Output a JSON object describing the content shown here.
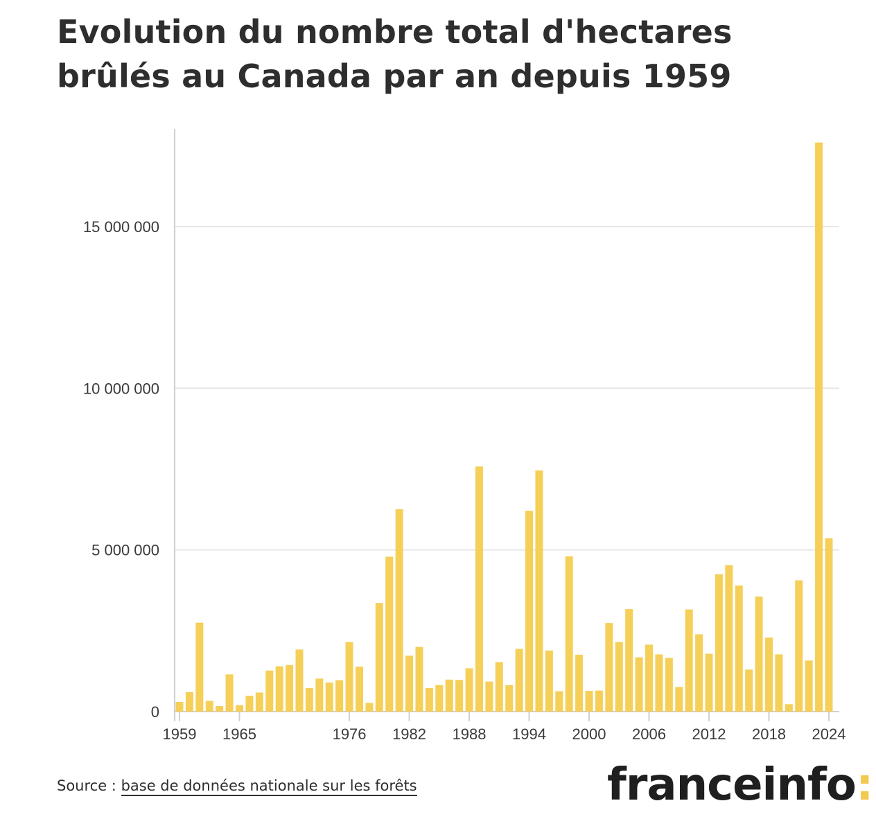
{
  "header": {
    "title": "Evolution du nombre total d'hectares brûlés au Canada par an depuis 1959"
  },
  "footer": {
    "source_prefix": "Source : ",
    "source_link": "base de données nationale sur les forêts",
    "logo_text": "franceinfo",
    "logo_colon": ":"
  },
  "colors": {
    "bar": "#f5cf57",
    "grid": "#e6e6e6",
    "axis": "#cfcfcf",
    "logo_accent": "#f3c94f"
  },
  "chart_data": {
    "type": "bar",
    "title": "",
    "xlabel": "",
    "ylabel": "",
    "ylim": [
      0,
      18000000
    ],
    "y_ticks": [
      0,
      5000000,
      10000000,
      15000000
    ],
    "y_tick_labels": [
      "0",
      "5 000 000",
      "10 000 000",
      "15 000 000"
    ],
    "x_tick_labels": [
      "1959",
      "1965",
      "1976",
      "1982",
      "1988",
      "1994",
      "2000",
      "2006",
      "2012",
      "2018",
      "2024"
    ],
    "grid": true,
    "legend": "none",
    "categories": [
      "1959",
      "1960",
      "1961",
      "1962",
      "1963",
      "1964",
      "1965",
      "1966",
      "1967",
      "1968",
      "1969",
      "1970",
      "1971",
      "1972",
      "1973",
      "1974",
      "1975",
      "1976",
      "1977",
      "1978",
      "1979",
      "1980",
      "1981",
      "1982",
      "1983",
      "1984",
      "1985",
      "1986",
      "1987",
      "1988",
      "1989",
      "1990",
      "1991",
      "1992",
      "1993",
      "1994",
      "1995",
      "1996",
      "1997",
      "1998",
      "1999",
      "2000",
      "2001",
      "2002",
      "2003",
      "2004",
      "2005",
      "2006",
      "2007",
      "2008",
      "2009",
      "2010",
      "2011",
      "2012",
      "2013",
      "2014",
      "2015",
      "2016",
      "2017",
      "2018",
      "2019",
      "2020",
      "2021",
      "2022",
      "2023",
      "2024"
    ],
    "values": [
      300000,
      600000,
      2750000,
      330000,
      170000,
      1150000,
      200000,
      490000,
      590000,
      1270000,
      1400000,
      1440000,
      1920000,
      730000,
      1020000,
      900000,
      970000,
      2150000,
      1390000,
      270000,
      3360000,
      4790000,
      6260000,
      1730000,
      2000000,
      730000,
      820000,
      990000,
      980000,
      1340000,
      7580000,
      930000,
      1530000,
      820000,
      1940000,
      6210000,
      7460000,
      1890000,
      630000,
      4800000,
      1760000,
      640000,
      650000,
      2740000,
      2150000,
      3170000,
      1680000,
      2070000,
      1770000,
      1660000,
      760000,
      3160000,
      2390000,
      1790000,
      4250000,
      4530000,
      3900000,
      1300000,
      3560000,
      2290000,
      1770000,
      230000,
      4060000,
      1580000,
      17600000,
      5360000
    ]
  }
}
